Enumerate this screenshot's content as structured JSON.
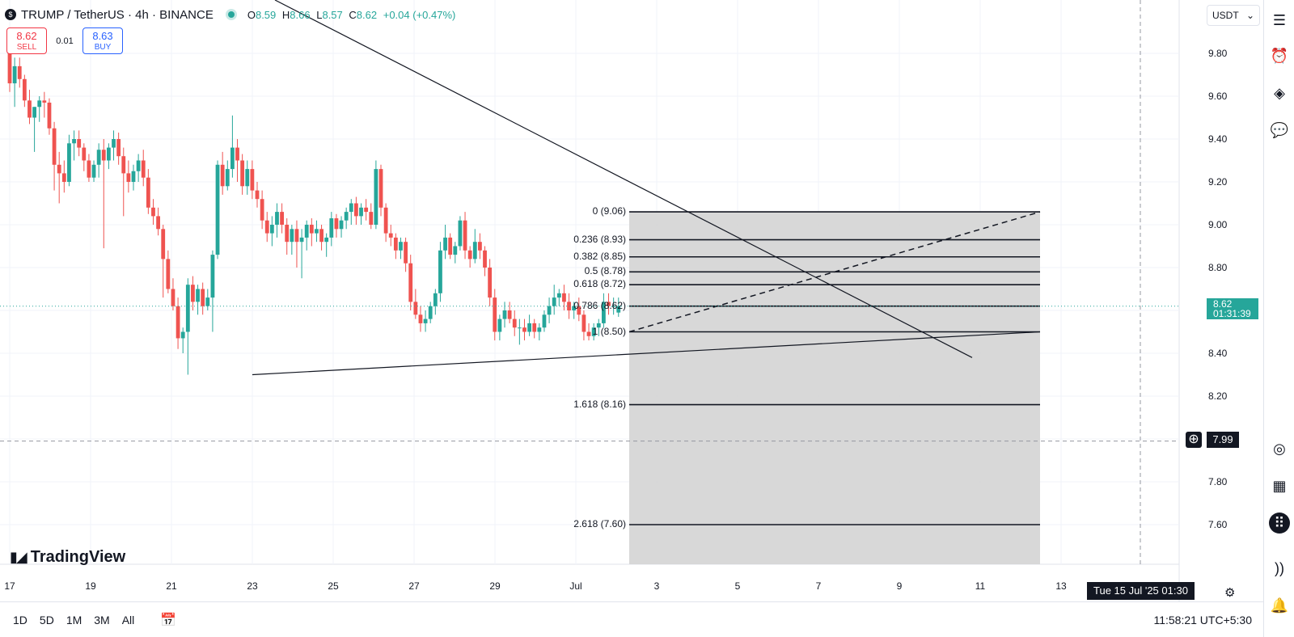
{
  "header": {
    "symbol": "TRUMP / TetherUS · 4h · BINANCE",
    "symbol_icon": "trump-coin-icon",
    "o_label": "O",
    "o_value": "8.59",
    "h_label": "H",
    "h_value": "8.66",
    "l_label": "L",
    "l_value": "8.57",
    "c_label": "C",
    "c_value": "8.62",
    "change": "+0.04 (+0.47%)"
  },
  "trade": {
    "sell_price": "8.62",
    "sell_label": "SELL",
    "spread": "0.01",
    "buy_price": "8.63",
    "buy_label": "BUY"
  },
  "currency_select": {
    "value": "USDT",
    "icon": "chevron-down-icon"
  },
  "current_price": {
    "value": "8.62",
    "countdown": "01:31:39"
  },
  "crosshair": {
    "price": "7.99",
    "time": "Tue 15 Jul '25  01:30"
  },
  "bottom_bar": {
    "ranges": [
      "1D",
      "5D",
      "1M",
      "3M",
      "All"
    ],
    "clock": "11:58:21 UTC+5:30"
  },
  "watermark": "TradingView",
  "right_toolbar": [
    "watchlist-icon",
    "alarm-clock-icon",
    "layers-icon",
    "chat-icon",
    "target-icon",
    "calendar-icon",
    "apps-grid-icon",
    "broadcast-icon",
    "bell-icon"
  ],
  "colors": {
    "up": "#26a69a",
    "down": "#ef5350",
    "sell": "#f23645",
    "buy": "#2962ff",
    "fib_bg": "#d4d4d4"
  },
  "chart_data": {
    "type": "candlestick",
    "y_ticks": [
      "9.80",
      "9.60",
      "9.40",
      "9.20",
      "9.00",
      "8.80",
      "8.60",
      "8.40",
      "8.20",
      "8.00",
      "7.80",
      "7.60"
    ],
    "y_range": [
      7.4,
      9.93
    ],
    "x_ticks": [
      "17",
      "19",
      "21",
      "23",
      "25",
      "27",
      "29",
      "Jul",
      "3",
      "5",
      "7",
      "9",
      "11",
      "13"
    ],
    "fib_levels": [
      {
        "label": "0 (9.06)",
        "price": 9.06
      },
      {
        "label": "0.236 (8.93)",
        "price": 8.93
      },
      {
        "label": "0.382 (8.85)",
        "price": 8.85
      },
      {
        "label": "0.5 (8.78)",
        "price": 8.78
      },
      {
        "label": "0.618 (8.72)",
        "price": 8.72
      },
      {
        "label": "0.786 (8.62)",
        "price": 8.62
      },
      {
        "label": "1 (8.50)",
        "price": 8.5
      },
      {
        "label": "1.618 (8.16)",
        "price": 8.16
      },
      {
        "label": "2.618 (7.60)",
        "price": 7.6
      }
    ],
    "candles": [
      {
        "o": 9.86,
        "h": 9.92,
        "l": 9.62,
        "c": 9.66
      },
      {
        "o": 9.66,
        "h": 9.78,
        "l": 9.55,
        "c": 9.74
      },
      {
        "o": 9.74,
        "h": 9.78,
        "l": 9.64,
        "c": 9.68
      },
      {
        "o": 9.68,
        "h": 9.7,
        "l": 9.55,
        "c": 9.58
      },
      {
        "o": 9.58,
        "h": 9.63,
        "l": 9.47,
        "c": 9.5
      },
      {
        "o": 9.5,
        "h": 9.55,
        "l": 9.34,
        "c": 9.55
      },
      {
        "o": 9.55,
        "h": 9.6,
        "l": 9.48,
        "c": 9.58
      },
      {
        "o": 9.58,
        "h": 9.62,
        "l": 9.5,
        "c": 9.57
      },
      {
        "o": 9.57,
        "h": 9.59,
        "l": 9.42,
        "c": 9.45
      },
      {
        "o": 9.45,
        "h": 9.48,
        "l": 9.16,
        "c": 9.28
      },
      {
        "o": 9.28,
        "h": 9.34,
        "l": 9.1,
        "c": 9.24
      },
      {
        "o": 9.24,
        "h": 9.3,
        "l": 9.15,
        "c": 9.2
      },
      {
        "o": 9.2,
        "h": 9.42,
        "l": 9.18,
        "c": 9.38
      },
      {
        "o": 9.38,
        "h": 9.44,
        "l": 9.3,
        "c": 9.4
      },
      {
        "o": 9.4,
        "h": 9.44,
        "l": 9.32,
        "c": 9.36
      },
      {
        "o": 9.36,
        "h": 9.38,
        "l": 9.25,
        "c": 9.3
      },
      {
        "o": 9.3,
        "h": 9.33,
        "l": 9.2,
        "c": 9.22
      },
      {
        "o": 9.22,
        "h": 9.3,
        "l": 9.2,
        "c": 9.28
      },
      {
        "o": 9.28,
        "h": 9.38,
        "l": 9.22,
        "c": 9.35
      },
      {
        "o": 9.35,
        "h": 9.4,
        "l": 8.89,
        "c": 9.3
      },
      {
        "o": 9.3,
        "h": 9.38,
        "l": 9.26,
        "c": 9.36
      },
      {
        "o": 9.36,
        "h": 9.44,
        "l": 9.3,
        "c": 9.4
      },
      {
        "o": 9.4,
        "h": 9.43,
        "l": 9.28,
        "c": 9.32
      },
      {
        "o": 9.32,
        "h": 9.36,
        "l": 9.04,
        "c": 9.24
      },
      {
        "o": 9.24,
        "h": 9.3,
        "l": 9.15,
        "c": 9.2
      },
      {
        "o": 9.2,
        "h": 9.28,
        "l": 9.16,
        "c": 9.25
      },
      {
        "o": 9.25,
        "h": 9.33,
        "l": 9.2,
        "c": 9.3
      },
      {
        "o": 9.3,
        "h": 9.35,
        "l": 9.18,
        "c": 9.22
      },
      {
        "o": 9.22,
        "h": 9.26,
        "l": 9.05,
        "c": 9.08
      },
      {
        "o": 9.08,
        "h": 9.12,
        "l": 9.0,
        "c": 9.04
      },
      {
        "o": 9.04,
        "h": 9.08,
        "l": 8.95,
        "c": 8.98
      },
      {
        "o": 8.98,
        "h": 9.0,
        "l": 8.66,
        "c": 8.84
      },
      {
        "o": 8.84,
        "h": 8.88,
        "l": 8.68,
        "c": 8.7
      },
      {
        "o": 8.7,
        "h": 8.75,
        "l": 8.6,
        "c": 8.62
      },
      {
        "o": 8.62,
        "h": 8.66,
        "l": 8.42,
        "c": 8.47
      },
      {
        "o": 8.47,
        "h": 8.52,
        "l": 8.4,
        "c": 8.5
      },
      {
        "o": 8.5,
        "h": 8.75,
        "l": 8.3,
        "c": 8.72
      },
      {
        "o": 8.72,
        "h": 8.76,
        "l": 8.6,
        "c": 8.64
      },
      {
        "o": 8.64,
        "h": 8.72,
        "l": 8.58,
        "c": 8.7
      },
      {
        "o": 8.7,
        "h": 8.73,
        "l": 8.58,
        "c": 8.62
      },
      {
        "o": 8.62,
        "h": 8.7,
        "l": 8.6,
        "c": 8.66
      },
      {
        "o": 8.66,
        "h": 8.88,
        "l": 8.5,
        "c": 8.86
      },
      {
        "o": 8.86,
        "h": 9.3,
        "l": 8.84,
        "c": 9.28
      },
      {
        "o": 9.28,
        "h": 9.34,
        "l": 9.14,
        "c": 9.18
      },
      {
        "o": 9.18,
        "h": 9.3,
        "l": 9.16,
        "c": 9.26
      },
      {
        "o": 9.26,
        "h": 9.51,
        "l": 9.22,
        "c": 9.36
      },
      {
        "o": 9.36,
        "h": 9.4,
        "l": 9.2,
        "c": 9.3
      },
      {
        "o": 9.3,
        "h": 9.33,
        "l": 9.14,
        "c": 9.18
      },
      {
        "o": 9.18,
        "h": 9.3,
        "l": 9.14,
        "c": 9.26
      },
      {
        "o": 9.26,
        "h": 9.3,
        "l": 9.12,
        "c": 9.16
      },
      {
        "o": 9.16,
        "h": 9.2,
        "l": 9.08,
        "c": 9.12
      },
      {
        "o": 9.12,
        "h": 9.16,
        "l": 8.98,
        "c": 9.02
      },
      {
        "o": 9.02,
        "h": 9.06,
        "l": 8.92,
        "c": 8.96
      },
      {
        "o": 8.96,
        "h": 9.04,
        "l": 8.9,
        "c": 9.0
      },
      {
        "o": 9.0,
        "h": 9.1,
        "l": 8.94,
        "c": 9.06
      },
      {
        "o": 9.06,
        "h": 9.1,
        "l": 8.96,
        "c": 9.0
      },
      {
        "o": 9.0,
        "h": 9.03,
        "l": 8.86,
        "c": 8.92
      },
      {
        "o": 8.92,
        "h": 9.0,
        "l": 8.86,
        "c": 8.98
      },
      {
        "o": 8.98,
        "h": 9.02,
        "l": 8.8,
        "c": 8.92
      },
      {
        "o": 8.92,
        "h": 8.98,
        "l": 8.75,
        "c": 8.94
      },
      {
        "o": 8.94,
        "h": 9.02,
        "l": 8.88,
        "c": 9.0
      },
      {
        "o": 9.0,
        "h": 9.03,
        "l": 8.9,
        "c": 8.96
      },
      {
        "o": 8.96,
        "h": 9.02,
        "l": 8.92,
        "c": 8.98
      },
      {
        "o": 8.98,
        "h": 9.0,
        "l": 8.88,
        "c": 8.92
      },
      {
        "o": 8.92,
        "h": 8.96,
        "l": 8.85,
        "c": 8.94
      },
      {
        "o": 8.94,
        "h": 9.06,
        "l": 8.9,
        "c": 9.03
      },
      {
        "o": 9.03,
        "h": 9.05,
        "l": 8.94,
        "c": 8.98
      },
      {
        "o": 8.98,
        "h": 9.04,
        "l": 8.94,
        "c": 9.02
      },
      {
        "o": 9.02,
        "h": 9.08,
        "l": 8.98,
        "c": 9.06
      },
      {
        "o": 9.06,
        "h": 9.12,
        "l": 9.0,
        "c": 9.1
      },
      {
        "o": 9.1,
        "h": 9.13,
        "l": 9.0,
        "c": 9.04
      },
      {
        "o": 9.04,
        "h": 9.1,
        "l": 9.0,
        "c": 9.08
      },
      {
        "o": 9.08,
        "h": 9.12,
        "l": 9.02,
        "c": 9.06
      },
      {
        "o": 9.06,
        "h": 9.1,
        "l": 8.98,
        "c": 9.0
      },
      {
        "o": 9.0,
        "h": 9.3,
        "l": 8.98,
        "c": 9.26
      },
      {
        "o": 9.26,
        "h": 9.28,
        "l": 9.04,
        "c": 9.08
      },
      {
        "o": 9.08,
        "h": 9.1,
        "l": 8.92,
        "c": 8.96
      },
      {
        "o": 8.96,
        "h": 9.0,
        "l": 8.9,
        "c": 8.94
      },
      {
        "o": 8.94,
        "h": 8.96,
        "l": 8.84,
        "c": 8.88
      },
      {
        "o": 8.88,
        "h": 8.94,
        "l": 8.84,
        "c": 8.92
      },
      {
        "o": 8.92,
        "h": 8.94,
        "l": 8.78,
        "c": 8.82
      },
      {
        "o": 8.82,
        "h": 8.86,
        "l": 8.6,
        "c": 8.64
      },
      {
        "o": 8.64,
        "h": 8.7,
        "l": 8.56,
        "c": 8.58
      },
      {
        "o": 8.58,
        "h": 8.62,
        "l": 8.5,
        "c": 8.54
      },
      {
        "o": 8.54,
        "h": 8.6,
        "l": 8.5,
        "c": 8.56
      },
      {
        "o": 8.56,
        "h": 8.64,
        "l": 8.54,
        "c": 8.62
      },
      {
        "o": 8.62,
        "h": 8.7,
        "l": 8.58,
        "c": 8.68
      },
      {
        "o": 8.68,
        "h": 8.92,
        "l": 8.64,
        "c": 8.88
      },
      {
        "o": 8.88,
        "h": 9.0,
        "l": 8.84,
        "c": 8.94
      },
      {
        "o": 8.94,
        "h": 8.96,
        "l": 8.84,
        "c": 8.86
      },
      {
        "o": 8.86,
        "h": 8.92,
        "l": 8.82,
        "c": 8.9
      },
      {
        "o": 8.9,
        "h": 9.04,
        "l": 8.88,
        "c": 9.02
      },
      {
        "o": 9.02,
        "h": 9.06,
        "l": 8.84,
        "c": 8.88
      },
      {
        "o": 8.88,
        "h": 8.9,
        "l": 8.8,
        "c": 8.84
      },
      {
        "o": 8.84,
        "h": 8.98,
        "l": 8.82,
        "c": 8.92
      },
      {
        "o": 8.92,
        "h": 8.96,
        "l": 8.84,
        "c": 8.88
      },
      {
        "o": 8.88,
        "h": 8.9,
        "l": 8.76,
        "c": 8.8
      },
      {
        "o": 8.8,
        "h": 8.84,
        "l": 8.62,
        "c": 8.66
      },
      {
        "o": 8.66,
        "h": 8.7,
        "l": 8.46,
        "c": 8.5
      },
      {
        "o": 8.5,
        "h": 8.58,
        "l": 8.46,
        "c": 8.56
      },
      {
        "o": 8.56,
        "h": 8.64,
        "l": 8.52,
        "c": 8.6
      },
      {
        "o": 8.6,
        "h": 8.64,
        "l": 8.54,
        "c": 8.56
      },
      {
        "o": 8.56,
        "h": 8.6,
        "l": 8.48,
        "c": 8.52
      },
      {
        "o": 8.52,
        "h": 8.56,
        "l": 8.44,
        "c": 8.52
      },
      {
        "o": 8.52,
        "h": 8.56,
        "l": 8.46,
        "c": 8.5
      },
      {
        "o": 8.5,
        "h": 8.58,
        "l": 8.48,
        "c": 8.54
      },
      {
        "o": 8.54,
        "h": 8.56,
        "l": 8.47,
        "c": 8.5
      },
      {
        "o": 8.5,
        "h": 8.54,
        "l": 8.46,
        "c": 8.52
      },
      {
        "o": 8.52,
        "h": 8.6,
        "l": 8.5,
        "c": 8.58
      },
      {
        "o": 8.58,
        "h": 8.66,
        "l": 8.54,
        "c": 8.62
      },
      {
        "o": 8.62,
        "h": 8.72,
        "l": 8.58,
        "c": 8.66
      },
      {
        "o": 8.66,
        "h": 8.7,
        "l": 8.62,
        "c": 8.68
      },
      {
        "o": 8.68,
        "h": 8.72,
        "l": 8.6,
        "c": 8.64
      },
      {
        "o": 8.64,
        "h": 8.68,
        "l": 8.56,
        "c": 8.6
      },
      {
        "o": 8.6,
        "h": 8.64,
        "l": 8.56,
        "c": 8.62
      },
      {
        "o": 8.62,
        "h": 8.66,
        "l": 8.55,
        "c": 8.58
      },
      {
        "o": 8.58,
        "h": 8.6,
        "l": 8.46,
        "c": 8.5
      },
      {
        "o": 8.5,
        "h": 8.54,
        "l": 8.46,
        "c": 8.48
      },
      {
        "o": 8.48,
        "h": 8.54,
        "l": 8.46,
        "c": 8.52
      },
      {
        "o": 8.52,
        "h": 8.56,
        "l": 8.48,
        "c": 8.54
      },
      {
        "o": 8.54,
        "h": 8.68,
        "l": 8.52,
        "c": 8.64
      },
      {
        "o": 8.64,
        "h": 8.68,
        "l": 8.58,
        "c": 8.62
      },
      {
        "o": 8.62,
        "h": 8.66,
        "l": 8.58,
        "c": 8.62
      },
      {
        "o": 8.59,
        "h": 8.66,
        "l": 8.57,
        "c": 8.62
      }
    ]
  }
}
